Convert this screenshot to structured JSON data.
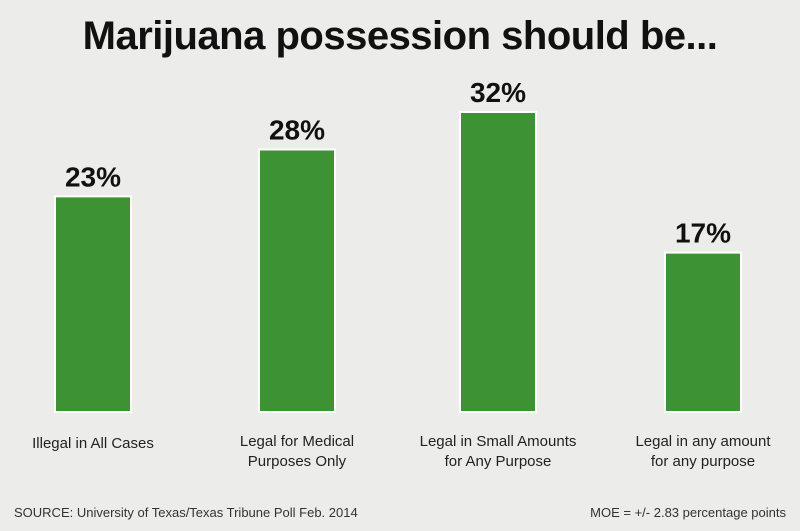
{
  "title": "Marijuana possession should be...",
  "source_note": "SOURCE: University of Texas/Texas Tribune Poll Feb. 2014",
  "moe_note": "MOE = +/- 2.83 percentage points",
  "colors": {
    "bar": "#3d9234",
    "bar_edge": "#ffffff",
    "background": "#ececea"
  },
  "chart_data": {
    "type": "bar",
    "categories": [
      [
        "Illegal in All Cases"
      ],
      [
        "Legal for Medical",
        "Purposes Only"
      ],
      [
        "Legal in Small Amounts",
        "for Any Purpose"
      ],
      [
        "Legal in any amount",
        "for any purpose"
      ]
    ],
    "values": [
      23,
      28,
      32,
      17
    ],
    "value_labels": [
      "23%",
      "28%",
      "32%",
      "17%"
    ],
    "title": "Marijuana possession should be...",
    "xlabel": "",
    "ylabel": "",
    "ylim": [
      0,
      32
    ],
    "grid": false,
    "legend": "none"
  }
}
